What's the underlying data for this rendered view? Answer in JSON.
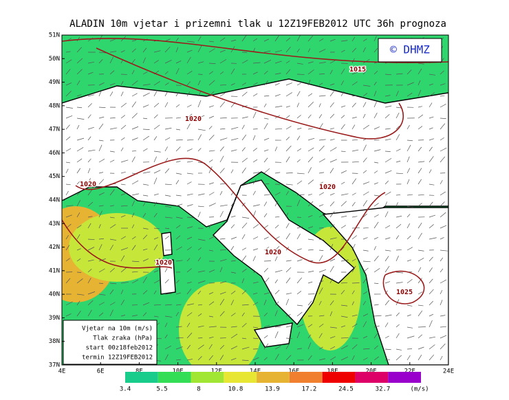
{
  "title": "ALADIN 10m vjetar i prizemni tlak u 12Z19FEB2012 UTC 36h prognoza",
  "logo": "© DHMZ",
  "lat_labels": [
    "51N",
    "50N",
    "49N",
    "48N",
    "47N",
    "46N",
    "45N",
    "44N",
    "43N",
    "42N",
    "41N",
    "40N",
    "39N",
    "38N",
    "37N"
  ],
  "lon_labels": [
    "4E",
    "6E",
    "8E",
    "10E",
    "12E",
    "14E",
    "16E",
    "18E",
    "20E",
    "22E",
    "24E"
  ],
  "isobar_labels": [
    "1015",
    "1020",
    "1020",
    "1020",
    "1020",
    "1020",
    "1025"
  ],
  "info_box": [
    "Vjetar na 10m (m/s)",
    "Tlak zraka (hPa)",
    "start 00z18feb2012",
    "termin 12Z19FEB2012"
  ],
  "colorbar": {
    "labels": [
      "3.4",
      "5.5",
      "8",
      "10.8",
      "13.9",
      "17.2",
      "24.5",
      "32.7"
    ],
    "unit": "(m/s)"
  }
}
